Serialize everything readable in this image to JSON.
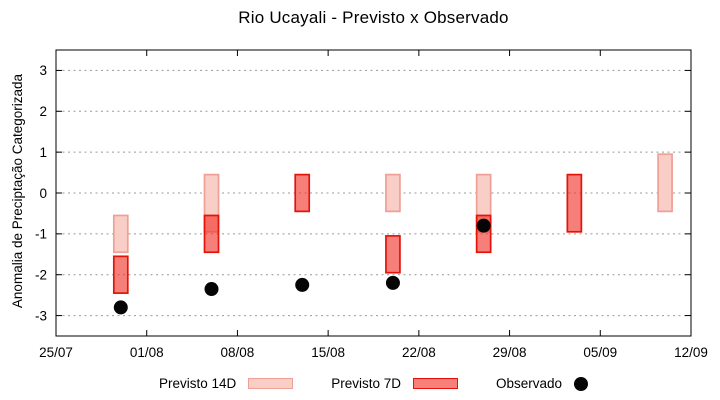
{
  "title": "Rio Ucayali - Previsto x Observado",
  "legend": {
    "previsto_14d": "Previsto 14D",
    "previsto_7d": "Previsto 7D",
    "observado": "Observado"
  },
  "chart_data": {
    "type": "bar",
    "title": "Rio Ucayali - Previsto x Observado",
    "xlabel": "",
    "ylabel": "Anomalia de Preciptação Categorizada",
    "ylim": [
      -3.5,
      3.5
    ],
    "yticks": [
      3,
      2,
      1,
      0,
      -1,
      -2,
      -3
    ],
    "xtick_labels": [
      "25/07",
      "01/08",
      "08/08",
      "15/08",
      "22/08",
      "29/08",
      "05/09",
      "12/09"
    ],
    "xtick_interval_days": 7,
    "x_total_days": 49,
    "grid": "horizontal-dashed",
    "legend_position": "bottom-center",
    "grid_color": "#999999",
    "axis_color": "#000000",
    "series": [
      {
        "name": "Previsto 14D",
        "type": "box",
        "color": "#f9cec7",
        "border": "#efa095",
        "points": [
          {
            "date": "30/07",
            "x_day": 5,
            "low": -1.45,
            "high": -0.55
          },
          {
            "date": "06/08",
            "x_day": 12,
            "low": -0.95,
            "high": 0.45
          },
          {
            "date": "20/08",
            "x_day": 26,
            "low": -0.45,
            "high": 0.45
          },
          {
            "date": "27/08",
            "x_day": 33,
            "low": -0.95,
            "high": 0.45
          },
          {
            "date": "10/09",
            "x_day": 47,
            "low": -0.45,
            "high": 0.95
          }
        ]
      },
      {
        "name": "Previsto 7D",
        "type": "box",
        "color": "rgba(242,48,38,0.62)",
        "border": "#e41309",
        "points": [
          {
            "date": "30/07",
            "x_day": 5,
            "low": -2.45,
            "high": -1.55
          },
          {
            "date": "06/08",
            "x_day": 12,
            "low": -1.45,
            "high": -0.55
          },
          {
            "date": "13/08",
            "x_day": 19,
            "low": -0.45,
            "high": 0.45
          },
          {
            "date": "20/08",
            "x_day": 26,
            "low": -1.95,
            "high": -1.05
          },
          {
            "date": "27/08",
            "x_day": 33,
            "low": -1.45,
            "high": -0.55
          },
          {
            "date": "03/09",
            "x_day": 40,
            "low": -0.95,
            "high": 0.45
          }
        ]
      },
      {
        "name": "Observado",
        "type": "scatter",
        "color": "#050505",
        "points": [
          {
            "date": "30/07",
            "x_day": 5,
            "y": -2.8
          },
          {
            "date": "06/08",
            "x_day": 12,
            "y": -2.35
          },
          {
            "date": "13/08",
            "x_day": 19,
            "y": -2.25
          },
          {
            "date": "20/08",
            "x_day": 26,
            "y": -2.2
          },
          {
            "date": "27/08",
            "x_day": 33,
            "y": -0.8
          }
        ]
      }
    ]
  }
}
